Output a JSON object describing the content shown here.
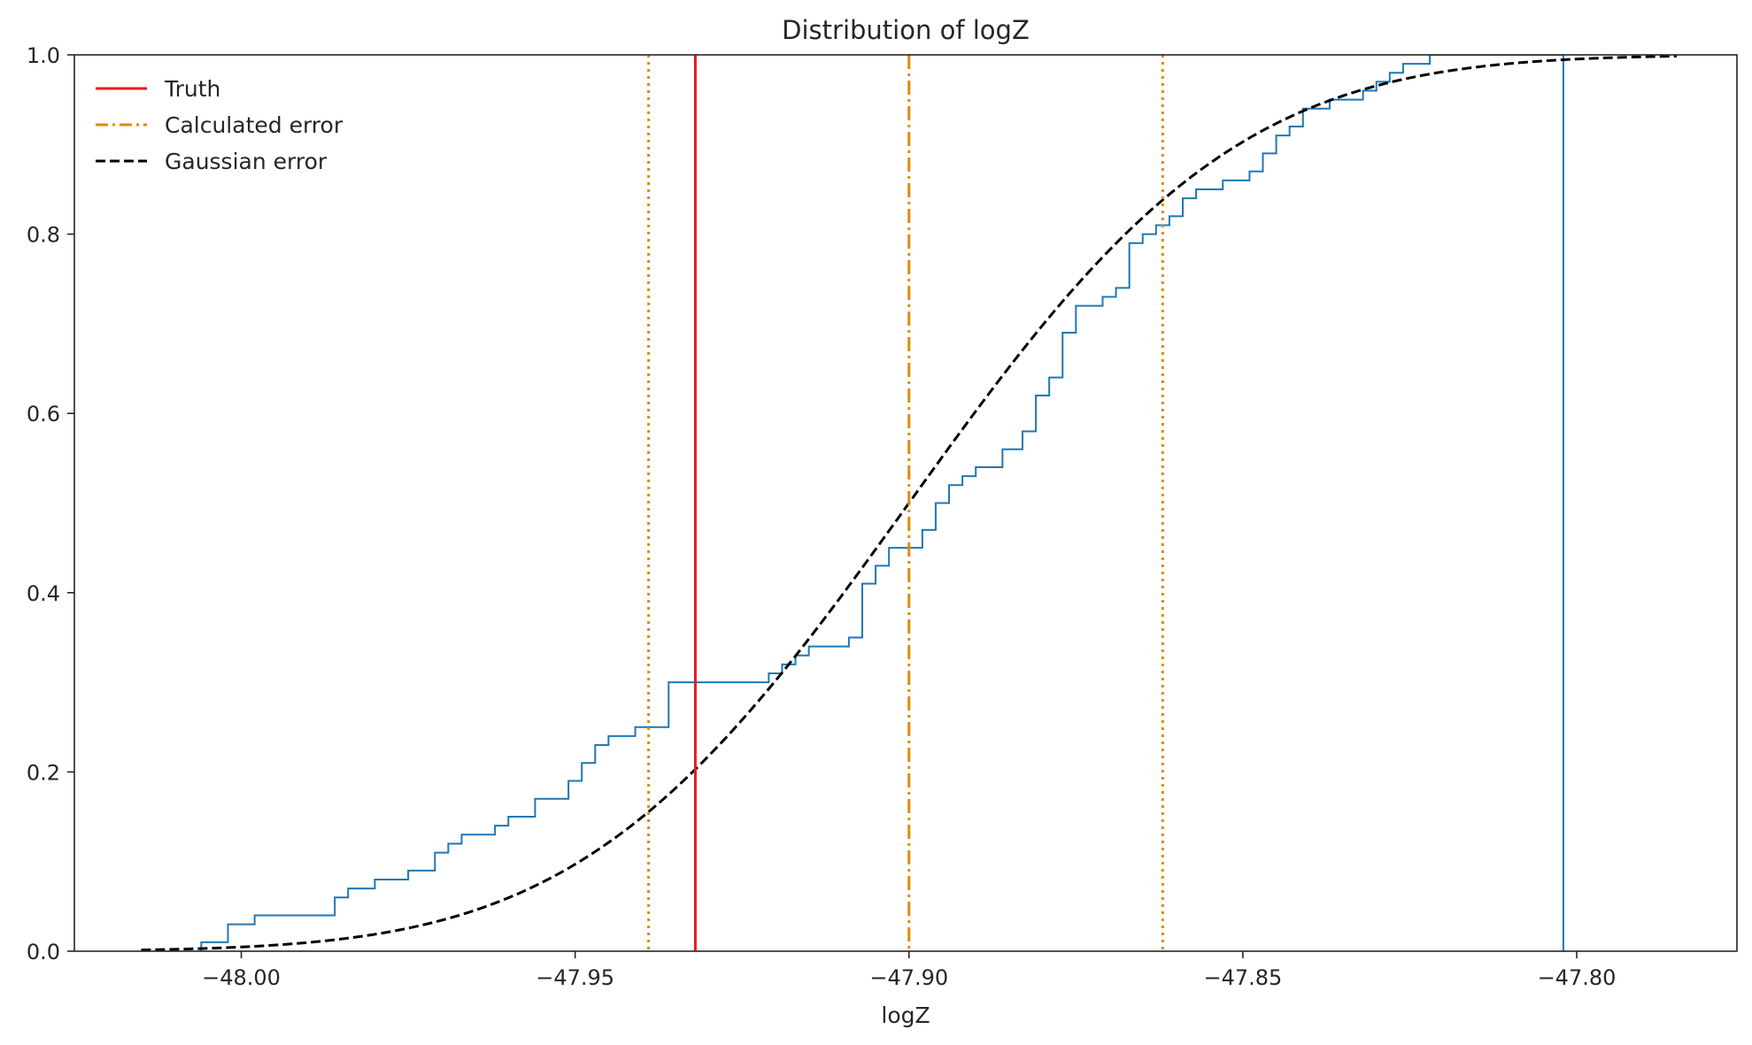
{
  "chart_data": {
    "type": "line",
    "title": "Distribution of logZ",
    "xlabel": "logZ",
    "ylabel": "",
    "xlim": [
      -48.025,
      -47.776
    ],
    "ylim": [
      0.0,
      1.0
    ],
    "xticks": [
      -48.0,
      -47.95,
      -47.9,
      -47.85,
      -47.8
    ],
    "xtick_labels": [
      "−48.00",
      "−47.95",
      "−47.90",
      "−47.85",
      "−47.80"
    ],
    "yticks": [
      0.0,
      0.2,
      0.4,
      0.6,
      0.8,
      1.0
    ],
    "ytick_labels": [
      "0.0",
      "0.2",
      "0.4",
      "0.6",
      "0.8",
      "1.0"
    ],
    "grid": false,
    "legend_position": "top-left",
    "legend": [
      {
        "label": "Truth",
        "color": "#e8191c",
        "style": "solid"
      },
      {
        "label": "Calculated error",
        "color": "#e08a00",
        "style": "dashdot"
      },
      {
        "label": "Gaussian error",
        "color": "#000000",
        "style": "dashed"
      }
    ],
    "truth": -47.932,
    "calculated_mean": -47.9,
    "calculated_bounds": [
      -47.939,
      -47.862
    ],
    "gaussian_cdf": {
      "mean": -47.9,
      "sigma": 0.0385,
      "x_range": [
        -48.015,
        -47.785
      ],
      "color": "#000000"
    },
    "ecdf": {
      "color": "#1f77b4",
      "x": [
        -48.006,
        -48.002,
        -47.998,
        -47.986,
        -47.984,
        -47.98,
        -47.975,
        -47.971,
        -47.969,
        -47.967,
        -47.962,
        -47.96,
        -47.956,
        -47.951,
        -47.949,
        -47.947,
        -47.945,
        -47.941,
        -47.936,
        -47.921,
        -47.919,
        -47.917,
        -47.915,
        -47.909,
        -47.907,
        -47.905,
        -47.903,
        -47.898,
        -47.896,
        -47.894,
        -47.892,
        -47.89,
        -47.886,
        -47.883,
        -47.881,
        -47.879,
        -47.877,
        -47.875,
        -47.871,
        -47.869,
        -47.867,
        -47.865,
        -47.863,
        -47.861,
        -47.859,
        -47.857,
        -47.853,
        -47.849,
        -47.847,
        -47.845,
        -47.843,
        -47.841,
        -47.837,
        -47.832,
        -47.83,
        -47.828,
        -47.826,
        -47.822,
        -47.816,
        -47.807,
        -47.805,
        -47.802
      ],
      "y": [
        0.01,
        0.03,
        0.04,
        0.06,
        0.07,
        0.08,
        0.09,
        0.11,
        0.12,
        0.13,
        0.14,
        0.15,
        0.17,
        0.19,
        0.21,
        0.23,
        0.24,
        0.25,
        0.3,
        0.31,
        0.32,
        0.33,
        0.34,
        0.35,
        0.41,
        0.43,
        0.45,
        0.47,
        0.5,
        0.52,
        0.53,
        0.54,
        0.56,
        0.58,
        0.62,
        0.64,
        0.69,
        0.72,
        0.73,
        0.74,
        0.79,
        0.8,
        0.81,
        0.82,
        0.84,
        0.85,
        0.86,
        0.87,
        0.89,
        0.91,
        0.92,
        0.94,
        0.95,
        0.96,
        0.97,
        0.98,
        0.99,
        1.0,
        1.0,
        1.0,
        1.0,
        0.0
      ]
    }
  }
}
